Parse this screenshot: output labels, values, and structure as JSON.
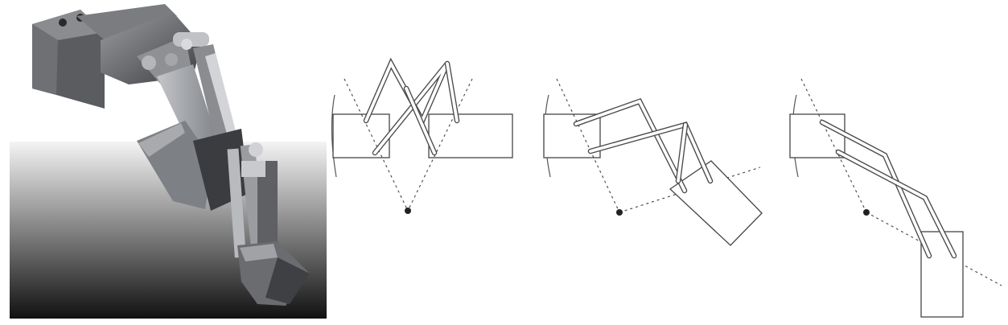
{
  "figure": {
    "panels": [
      {
        "id": "render",
        "kind": "3d-rendering",
        "subject": "linkage-jaw-mechanism"
      },
      {
        "id": "a",
        "kind": "schematic",
        "state": "open"
      },
      {
        "id": "b",
        "kind": "schematic",
        "state": "rotating"
      },
      {
        "id": "c",
        "kind": "schematic",
        "state": "closed"
      }
    ],
    "colors": {
      "line": "#444444",
      "pivot": "#222222",
      "background": "#ffffff",
      "render_dark": "#1a1a1a"
    }
  }
}
